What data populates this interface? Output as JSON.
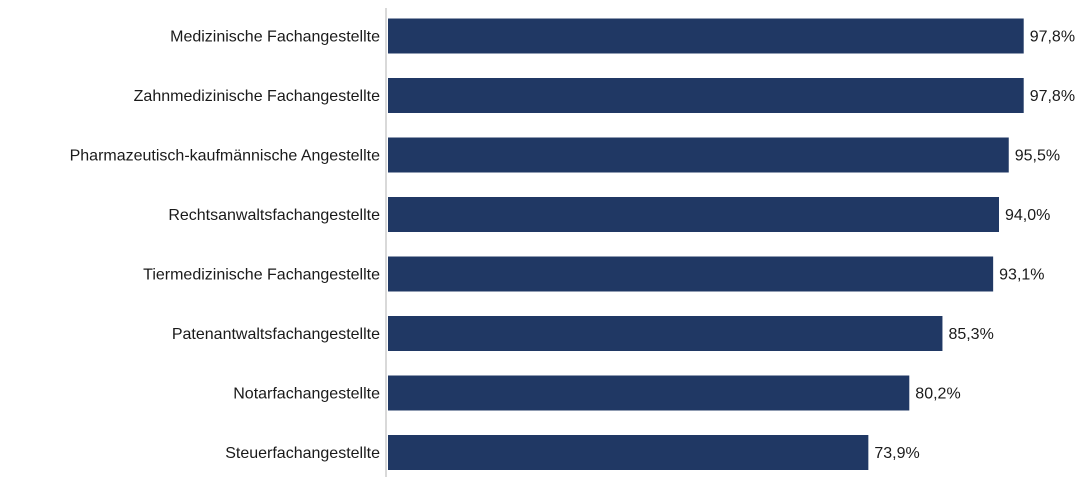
{
  "chart_data": {
    "type": "bar",
    "orientation": "horizontal",
    "categories": [
      "Medizinische Fachangestellte",
      "Zahnmedizinische Fachangestellte",
      "Pharmazeutisch-kaufmännische Angestellte",
      "Rechtsanwaltsfachangestellte",
      "Tiermedizinische Fachangestellte",
      "Patenantwaltsfachangestellte",
      "Notarfachangestellte",
      "Steuerfachangestellte"
    ],
    "values": [
      97.8,
      97.8,
      95.5,
      94.0,
      93.1,
      85.3,
      80.2,
      73.9
    ],
    "value_labels": [
      "97,8%",
      "97,8%",
      "95,5%",
      "94,0%",
      "93,1%",
      "85,3%",
      "80,2%",
      "73,9%"
    ],
    "xlim": [
      0,
      100
    ],
    "bar_color": "#203864",
    "grid": false,
    "legend": "none"
  }
}
